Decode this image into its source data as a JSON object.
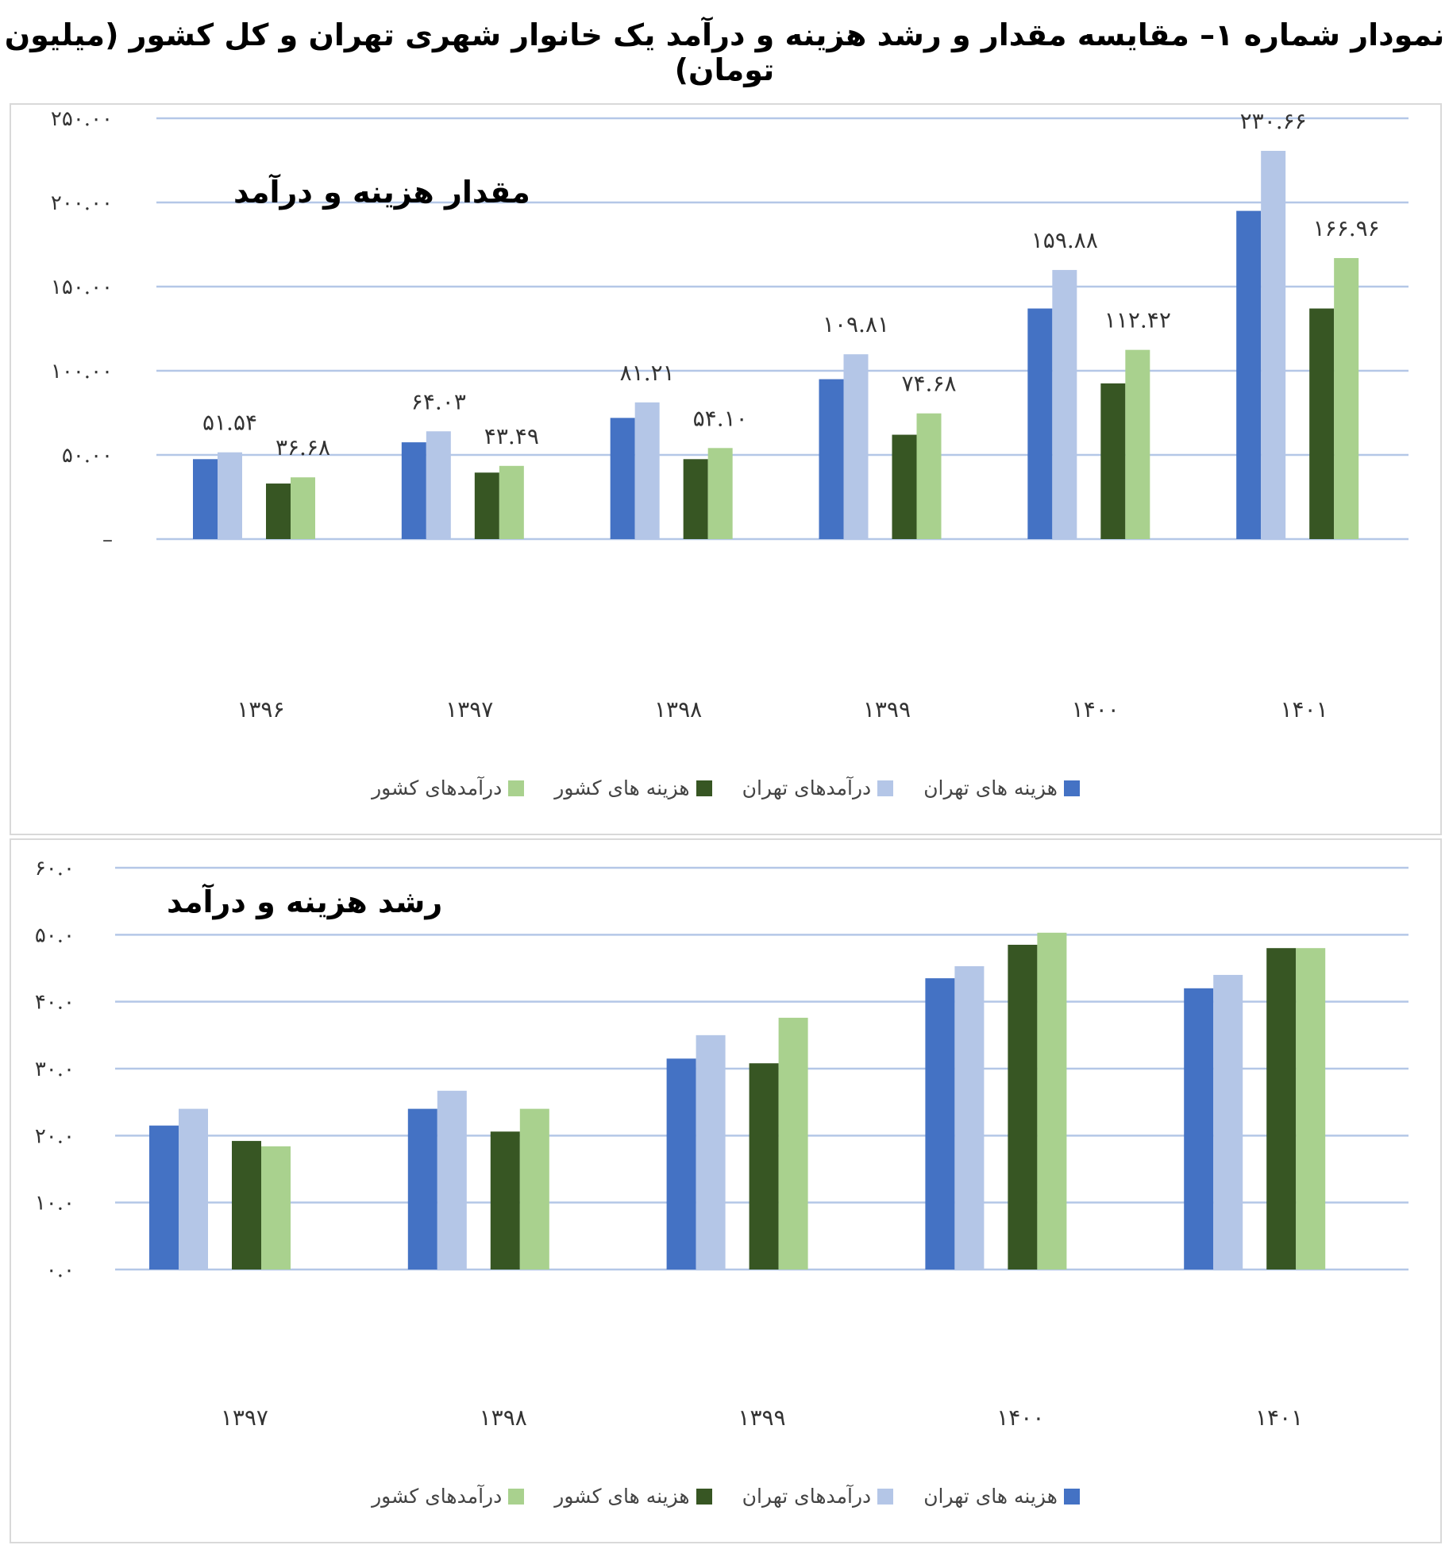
{
  "page_title": "نمودار شماره ۱– مقایسه مقدار و رشد هزینه و درآمد یک خانوار شهری تهران و کل کشور (میلیون تومان)",
  "legend": [
    {
      "label": "هزینه های تهران",
      "color": "#4472C4"
    },
    {
      "label": "درآمدهای تهران",
      "color": "#B4C6E7"
    },
    {
      "label": "هزینه های کشور",
      "color": "#375623"
    },
    {
      "label": "درآمدهای کشور",
      "color": "#A9D18E"
    }
  ],
  "chart_data": [
    {
      "type": "bar",
      "title": "مقدار هزینه و درآمد",
      "categories": [
        "۱۳۹۶",
        "۱۳۹۷",
        "۱۳۹۸",
        "۱۳۹۹",
        "۱۴۰۰",
        "۱۴۰۱"
      ],
      "ylim": [
        0,
        250
      ],
      "yticks": [
        0,
        50,
        100,
        150,
        200,
        250
      ],
      "ytick_labels": [
        "–",
        "۵۰.۰۰",
        "۱۰۰.۰۰",
        "۱۵۰.۰۰",
        "۲۰۰.۰۰",
        "۲۵۰.۰۰"
      ],
      "grid": true,
      "legend_position": "bottom",
      "series": [
        {
          "name": "هزینه های تهران",
          "color": "#4472C4",
          "values": [
            47.5,
            57.5,
            72.0,
            95.0,
            137.0,
            195.0
          ],
          "labels": []
        },
        {
          "name": "درآمدهای تهران",
          "color": "#B4C6E7",
          "values": [
            51.54,
            64.03,
            81.21,
            109.81,
            159.88,
            230.66
          ],
          "labels": [
            "۵۱.۵۴",
            "۶۴.۰۳",
            "۸۱.۲۱",
            "۱۰۹.۸۱",
            "۱۵۹.۸۸",
            "۲۳۰.۶۶"
          ]
        },
        {
          "name": "هزینه های کشور",
          "color": "#375623",
          "values": [
            33.0,
            39.5,
            47.5,
            62.0,
            92.5,
            137.0
          ],
          "labels": []
        },
        {
          "name": "درآمدهای کشور",
          "color": "#A9D18E",
          "values": [
            36.68,
            43.49,
            54.1,
            74.68,
            112.42,
            166.96
          ],
          "labels": [
            "۳۶.۶۸",
            "۴۳.۴۹",
            "۵۴.۱۰",
            "۷۴.۶۸",
            "۱۱۲.۴۲",
            "۱۶۶.۹۶"
          ]
        }
      ]
    },
    {
      "type": "bar",
      "title": "رشد هزینه و درآمد",
      "categories": [
        "۱۳۹۷",
        "۱۳۹۸",
        "۱۳۹۹",
        "۱۴۰۰",
        "۱۴۰۱"
      ],
      "ylim": [
        0,
        60
      ],
      "yticks": [
        0,
        10,
        20,
        30,
        40,
        50,
        60
      ],
      "ytick_labels": [
        "۰.۰",
        "۱۰.۰",
        "۲۰.۰",
        "۳۰.۰",
        "۴۰.۰",
        "۵۰.۰",
        "۶۰.۰"
      ],
      "grid": true,
      "legend_position": "bottom",
      "series": [
        {
          "name": "هزینه های تهران",
          "color": "#4472C4",
          "values": [
            21.5,
            24.0,
            31.5,
            43.5,
            42.0
          ]
        },
        {
          "name": "درآمدهای تهران",
          "color": "#B4C6E7",
          "values": [
            24.0,
            26.7,
            35.0,
            45.3,
            44.0
          ]
        },
        {
          "name": "هزینه های کشور",
          "color": "#375623",
          "values": [
            19.2,
            20.6,
            30.8,
            48.5,
            48.0
          ]
        },
        {
          "name": "درآمدهای کشور",
          "color": "#A9D18E",
          "values": [
            18.4,
            24.0,
            37.6,
            50.3,
            48.0
          ]
        }
      ]
    }
  ]
}
